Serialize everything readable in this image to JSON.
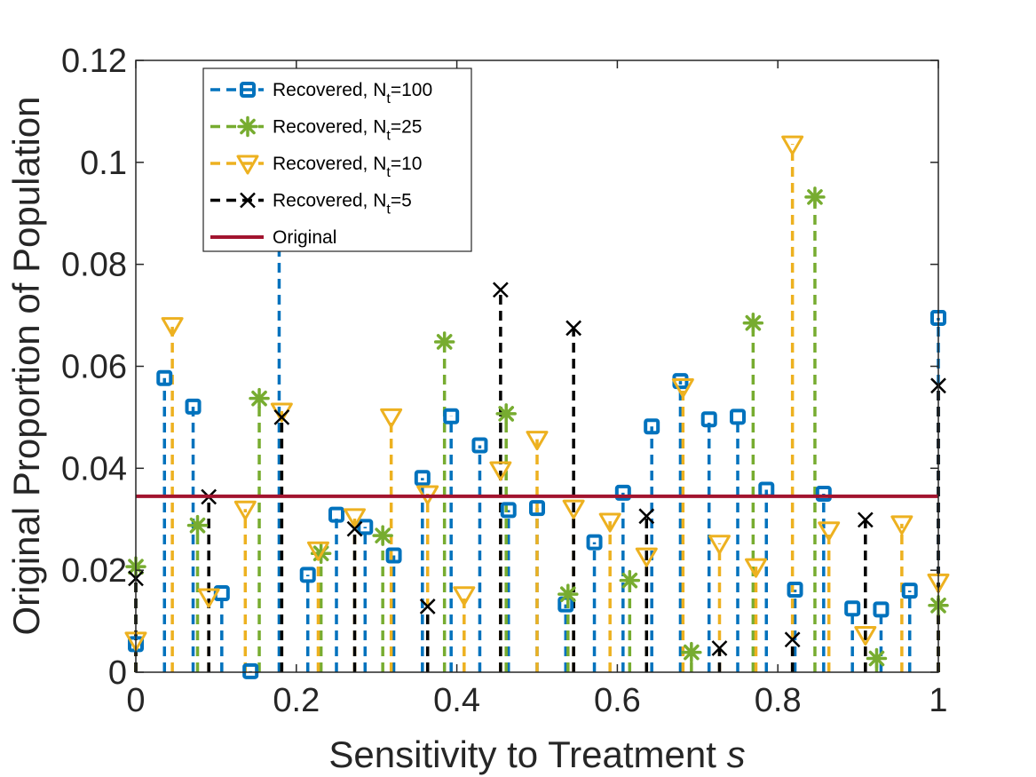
{
  "chart_data": {
    "type": "stem",
    "xlabel": "Sensitivity to Treatment",
    "xlabel_symbol": "s",
    "ylabel": "Original Proportion of Population",
    "xlim": [
      0,
      1
    ],
    "ylim": [
      0,
      0.12
    ],
    "xticks": [
      "0",
      "0.2",
      "0.4",
      "0.6",
      "0.8",
      "1"
    ],
    "yticks": [
      "0",
      "0.02",
      "0.04",
      "0.06",
      "0.08",
      "0.1",
      "0.12"
    ],
    "legend_position": "top-left",
    "original_value": 0.0345,
    "series": [
      {
        "name": "Recovered, N",
        "subscript": "t",
        "suffix": "=100",
        "color": "#0072BD",
        "marker": "square",
        "x": [
          0,
          0.0357,
          0.0714,
          0.1071,
          0.1429,
          0.1786,
          0.2143,
          0.25,
          0.2857,
          0.3214,
          0.3571,
          0.3929,
          0.4286,
          0.4643,
          0.5,
          0.5357,
          0.5714,
          0.6071,
          0.6429,
          0.6786,
          0.7143,
          0.75,
          0.7857,
          0.8214,
          0.8571,
          0.8929,
          0.9286,
          0.9643,
          1
        ],
        "y": [
          0.0055,
          0.0577,
          0.0521,
          0.0155,
          0.0002,
          0.0868,
          0.0191,
          0.0309,
          0.0285,
          0.0229,
          0.0381,
          0.0502,
          0.0445,
          0.0318,
          0.0322,
          0.0133,
          0.0255,
          0.0352,
          0.0482,
          0.0571,
          0.0496,
          0.0501,
          0.0358,
          0.0162,
          0.035,
          0.0125,
          0.0123,
          0.016,
          0.0695
        ]
      },
      {
        "name": "Recovered, N",
        "subscript": "t",
        "suffix": "=25",
        "color": "#77AC30",
        "marker": "asterisk",
        "x": [
          0,
          0.0769,
          0.1538,
          0.2308,
          0.3077,
          0.3846,
          0.4615,
          0.5385,
          0.6154,
          0.6923,
          0.7692,
          0.8462,
          0.9231,
          1
        ],
        "y": [
          0.0207,
          0.0288,
          0.0537,
          0.0233,
          0.0268,
          0.0648,
          0.0507,
          0.0153,
          0.018,
          0.0039,
          0.0685,
          0.0932,
          0.0027,
          0.0131
        ]
      },
      {
        "name": "Recovered, N",
        "subscript": "t",
        "suffix": "=10",
        "color": "#EDB120",
        "marker": "triangle-down",
        "x": [
          0,
          0.0455,
          0.0909,
          0.1364,
          0.1818,
          0.2273,
          0.2727,
          0.3182,
          0.3636,
          0.4091,
          0.4545,
          0.5,
          0.5455,
          0.5909,
          0.6364,
          0.6818,
          0.7273,
          0.7727,
          0.8182,
          0.8636,
          0.9091,
          0.9545,
          1
        ],
        "y": [
          0.0063,
          0.068,
          0.0148,
          0.032,
          0.0512,
          0.024,
          0.0305,
          0.0501,
          0.035,
          0.0152,
          0.0397,
          0.0457,
          0.0322,
          0.0296,
          0.0228,
          0.056,
          0.0253,
          0.0207,
          0.1036,
          0.0279,
          0.0074,
          0.0291,
          0.0177
        ]
      },
      {
        "name": "Recovered, N",
        "subscript": "t",
        "suffix": "=5",
        "color": "#000000",
        "marker": "x",
        "x": [
          0,
          0.0909,
          0.1818,
          0.2727,
          0.3636,
          0.4545,
          0.5455,
          0.6364,
          0.7273,
          0.8182,
          0.9091,
          1
        ],
        "y": [
          0.0184,
          0.0344,
          0.05,
          0.0281,
          0.0129,
          0.075,
          0.0675,
          0.0306,
          0.0047,
          0.0064,
          0.0299,
          0.0562
        ]
      }
    ],
    "original_series": {
      "name": "Original",
      "color": "#A2142F"
    }
  }
}
